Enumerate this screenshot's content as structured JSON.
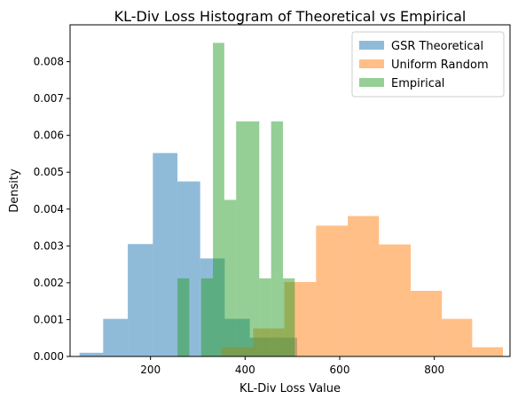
{
  "chart_data": {
    "type": "histogram",
    "title": "KL-Div Loss Histogram of Theoretical vs Empirical",
    "xlabel": "KL-Div Loss Value",
    "ylabel": "Density",
    "xlim": [
      30,
      960
    ],
    "ylim": [
      0,
      0.009
    ],
    "xticks": [
      200,
      400,
      600,
      800
    ],
    "xtick_labels": [
      "200",
      "400",
      "600",
      "800"
    ],
    "yticks": [
      0,
      0.001,
      0.002,
      0.003,
      0.004,
      0.005,
      0.006,
      0.007,
      0.008
    ],
    "ytick_labels": [
      "0.000",
      "0.001",
      "0.002",
      "0.003",
      "0.004",
      "0.005",
      "0.006",
      "0.007",
      "0.008"
    ],
    "grid": false,
    "legend_position": "top-right",
    "series": [
      {
        "name": "GSR Theoretical",
        "color": "#1f77b4",
        "alpha": 0.5,
        "bin_edges": [
          50,
          100,
          152,
          205,
          257,
          305,
          357,
          410,
          460,
          510
        ],
        "density": [
          0.0001,
          0.00102,
          0.00305,
          0.00552,
          0.00475,
          0.00266,
          0.00102,
          0.00051,
          0.00051
        ]
      },
      {
        "name": "Uniform Random",
        "color": "#ff7f0e",
        "alpha": 0.5,
        "bin_edges": [
          283,
          350,
          417,
          483,
          550,
          617,
          683,
          750,
          816,
          880,
          945
        ],
        "density": [
          0.0,
          0.00025,
          0.00076,
          0.00202,
          0.00355,
          0.00381,
          0.00304,
          0.00178,
          0.00102,
          0.00025
        ]
      },
      {
        "name": "Empirical",
        "color": "#2ca02c",
        "alpha": 0.5,
        "bin_edges": [
          257,
          282,
          307,
          332,
          356,
          381,
          405,
          430,
          455,
          480,
          505
        ],
        "density": [
          0.00212,
          0.0,
          0.00212,
          0.00851,
          0.00425,
          0.00638,
          0.00638,
          0.00212,
          0.00638,
          0.00212
        ]
      }
    ]
  }
}
